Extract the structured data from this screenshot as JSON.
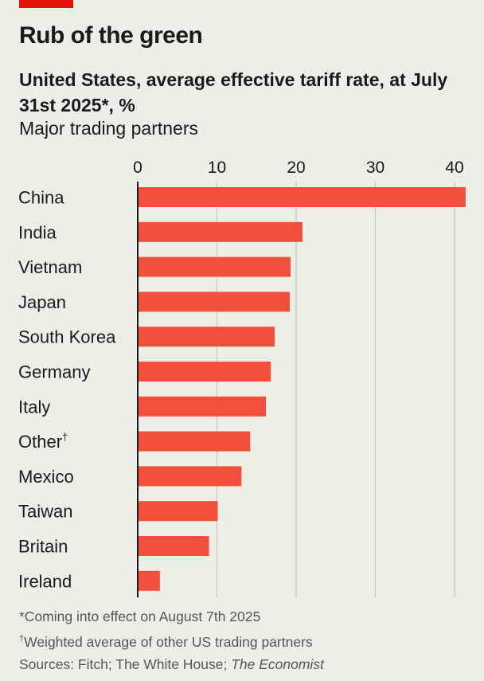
{
  "header": {
    "title": "Rub of the green",
    "subtitle": "United States, average effective tariff rate, at July 31st 2025*, %",
    "subsubtitle": "Major trading partners"
  },
  "colors": {
    "accent": "#e3120b",
    "bar": "#f0503c",
    "grid": "#c9c6bb",
    "axis": "#1a1a1a"
  },
  "chart_data": {
    "type": "bar",
    "orientation": "horizontal",
    "title": "Rub of the green",
    "categories": [
      "China",
      "India",
      "Vietnam",
      "Japan",
      "South Korea",
      "Germany",
      "Italy",
      "Other",
      "Mexico",
      "Taiwan",
      "Britain",
      "Ireland"
    ],
    "category_marks": [
      "",
      "",
      "",
      "",
      "",
      "",
      "",
      "†",
      "",
      "",
      "",
      ""
    ],
    "values": [
      41.4,
      20.8,
      19.3,
      19.2,
      17.3,
      16.8,
      16.2,
      14.2,
      13.1,
      10.1,
      9.0,
      2.8
    ],
    "xlim": [
      0,
      42
    ],
    "xticks": [
      0,
      10,
      20,
      30,
      40
    ],
    "grid": true,
    "legend": "none"
  },
  "footnotes": {
    "note1": "*Coming into effect on August 7th 2025",
    "note2_mark": "†",
    "note2": "Weighted average of other US trading partners",
    "source_prefix": "Sources: Fitch; The White House; ",
    "source_italic": "The Economist"
  }
}
